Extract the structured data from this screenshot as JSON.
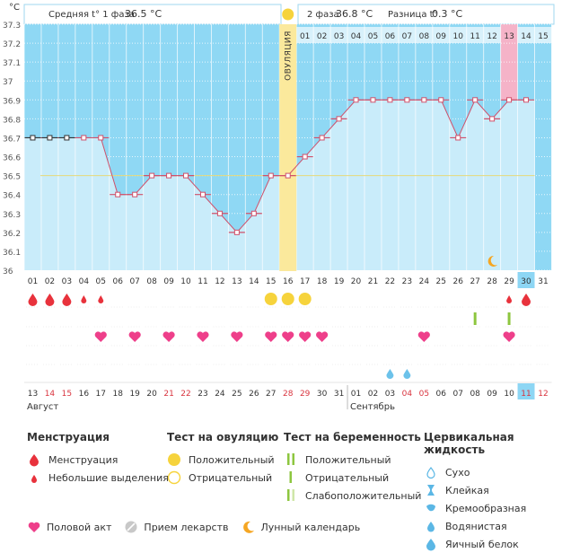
{
  "header": {
    "unit": "°C",
    "phase1_label": "Средняя t° 1 фаза",
    "phase1_value": "36.5 °C",
    "phase2_label": "2 фаза",
    "phase2_value": "36.8 °C",
    "diff_label": "Разница t°",
    "diff_value": "0.3 °C"
  },
  "ovulation_label": "ОВУЛЯЦИЯ",
  "chart_data": {
    "type": "line",
    "title": "",
    "ylabel": "°C",
    "ylim": [
      36.0,
      37.3
    ],
    "yticks": [
      "37.3",
      "37.2",
      "37.1",
      "37",
      "36.9",
      "36.8",
      "36.7",
      "36.6",
      "36.5",
      "36.4",
      "36.3",
      "36.2",
      "36.1",
      "36"
    ],
    "cycle_days": [
      "01",
      "02",
      "03",
      "04",
      "05",
      "06",
      "07",
      "08",
      "09",
      "10",
      "11",
      "12",
      "13",
      "14",
      "15",
      "16",
      "17",
      "18",
      "19",
      "20",
      "21",
      "22",
      "23",
      "24",
      "25",
      "26",
      "27",
      "28",
      "29",
      "30",
      "31"
    ],
    "phase2_days": [
      "01",
      "02",
      "03",
      "04",
      "05",
      "06",
      "07",
      "08",
      "09",
      "10",
      "11",
      "12",
      "13",
      "14",
      "15"
    ],
    "temperatures": [
      36.7,
      36.7,
      36.7,
      36.7,
      36.7,
      36.4,
      36.4,
      36.5,
      36.5,
      36.5,
      36.4,
      36.3,
      36.2,
      36.3,
      36.5,
      36.5,
      36.6,
      36.7,
      36.8,
      36.9,
      36.9,
      36.9,
      36.9,
      36.9,
      36.9,
      36.7,
      36.9,
      36.8,
      36.9,
      36.9
    ],
    "coverline": 36.5,
    "ovulation_day": 16,
    "highlight_phase2_day": "13",
    "today_cycle_day": "30",
    "calendar_dates": [
      "13",
      "14",
      "15",
      "16",
      "17",
      "18",
      "19",
      "20",
      "21",
      "22",
      "23",
      "24",
      "25",
      "26",
      "27",
      "28",
      "29",
      "30",
      "31",
      "01",
      "02",
      "03",
      "04",
      "05",
      "06",
      "07",
      "08",
      "09",
      "10",
      "11",
      "12"
    ],
    "weekend_dates_index": [
      1,
      2,
      8,
      9,
      15,
      16,
      22,
      23,
      29,
      30
    ],
    "months": [
      "Август",
      "Сентябрь"
    ],
    "menstruation": {
      "large": [
        1,
        2,
        3,
        30
      ],
      "small": [
        4,
        5,
        29
      ]
    },
    "ovulation_test_positive": [
      15,
      16,
      17
    ],
    "pregnancy_test_weak": [
      27,
      29
    ],
    "intercourse": [
      5,
      7,
      9,
      11,
      13,
      15,
      16,
      17,
      18,
      24,
      29
    ],
    "cervical_watery": [
      22,
      23
    ],
    "moon": [
      28
    ]
  },
  "legend": {
    "menstruation": {
      "title": "Менструация",
      "items": [
        "Менструация",
        "Небольшие выделения"
      ]
    },
    "ovulation_test": {
      "title": "Тест на овуляцию",
      "items": [
        "Положительный",
        "Отрицательный"
      ]
    },
    "pregnancy_test": {
      "title": "Тест на беременность",
      "items": [
        "Положительный",
        "Отрицательный",
        "Слабоположительный"
      ]
    },
    "cervical": {
      "title": "Цервикальная жидкость",
      "items": [
        "Сухо",
        "Клейкая",
        "Кремообразная",
        "Водянистая",
        "Яичный белок"
      ]
    }
  },
  "bottom": {
    "items": [
      "Половой акт",
      "Прием лекарств",
      "Лунный календарь"
    ]
  },
  "colors": {
    "blue": "#8fd8f4",
    "light": "#c9ecfa",
    "line": "#d0506a",
    "pink": "#f5b3c8",
    "ovul": "#fbe99c",
    "yellow": "#f6d33c",
    "heart": "#ee3f8a",
    "drop": "#e8323c",
    "green": "#8dc63f",
    "today": "#8dd6f4"
  }
}
